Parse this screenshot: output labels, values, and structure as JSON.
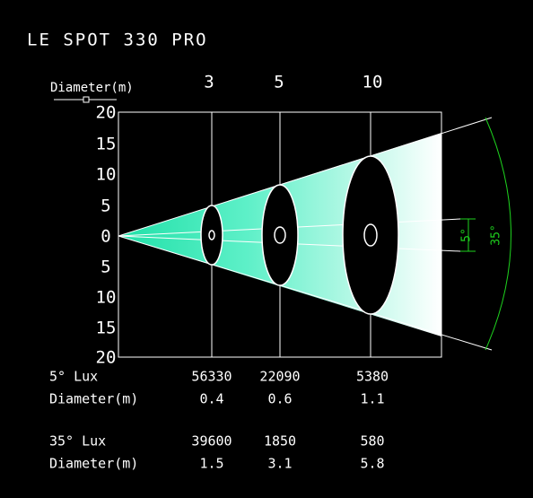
{
  "header": {
    "title": "LE SPOT 330 PRO"
  },
  "axis": {
    "label": "Diameter(m)",
    "distances": [
      "3",
      "5",
      "10"
    ],
    "ticks": [
      "20",
      "15",
      "10",
      "5",
      "0",
      "5",
      "10",
      "15",
      "20"
    ]
  },
  "angles": {
    "narrow": "5°",
    "wide": "35°"
  },
  "table": {
    "rows": [
      [
        "5° Lux",
        "56330",
        "22090",
        "5380"
      ],
      [
        "Diameter(m)",
        "0.4",
        "0.6",
        "1.1"
      ],
      [
        "35° Lux",
        "39600",
        "1850",
        "580"
      ],
      [
        "Diameter(m)",
        "1.5",
        "3.1",
        "5.8"
      ]
    ]
  }
}
